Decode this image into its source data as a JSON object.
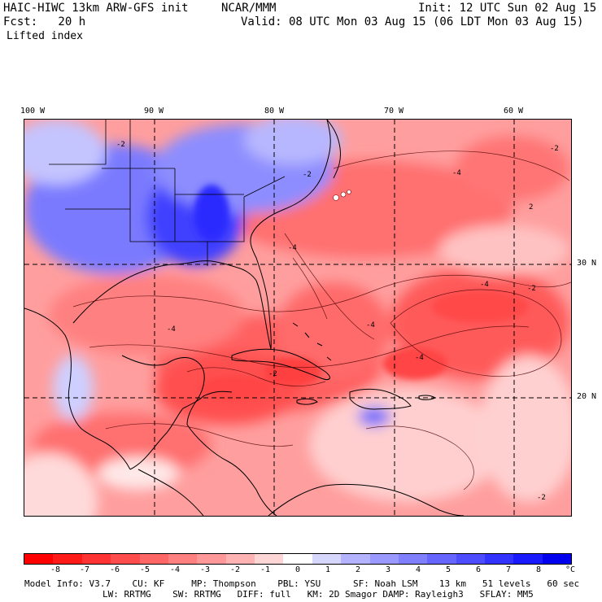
{
  "header": {
    "title_left": "HAIC-HIWC 13km ARW-GFS init",
    "org": "NCAR/MMM",
    "init": "Init: 12 UTC Sun 02 Aug 15",
    "fcst": "Fcst:   20 h",
    "valid": "Valid: 08 UTC Mon 03 Aug 15 (06 LDT Mon 03 Aug 15)",
    "field": "Lifted index"
  },
  "map": {
    "lon_labels": [
      "100 W",
      "90 W",
      "80 W",
      "70 W",
      "60 W"
    ],
    "lat_labels": [
      "30 N",
      "20 N"
    ],
    "contour_labels": [
      "-2",
      "-2",
      "-4",
      "-2",
      "2",
      "-4",
      "-2",
      "-4",
      "-2",
      "-4",
      "-4",
      "-4",
      "-2"
    ],
    "colors": {
      "land_line": "#000000",
      "grid_line": "#000000"
    }
  },
  "colorbar": {
    "ticks": [
      "-8",
      "-7",
      "-6",
      "-5",
      "-4",
      "-3",
      "-2",
      "-1",
      "0",
      "1",
      "2",
      "3",
      "4",
      "5",
      "6",
      "7",
      "8"
    ],
    "unit": "°C",
    "colors": [
      "#ff0000",
      "#ff1a1a",
      "#ff3333",
      "#ff4d4d",
      "#ff6666",
      "#ff8080",
      "#ff9999",
      "#ffb3b3",
      "#ffd6d6",
      "#ffffff",
      "#d6d6ff",
      "#b3b3ff",
      "#9999ff",
      "#8080ff",
      "#6666ff",
      "#4d4dff",
      "#3333ff",
      "#1a1aff",
      "#0000ee"
    ]
  },
  "model_info": {
    "line1": "Model Info: V3.7    CU: KF     MP: Thompson    PBL: YSU      SF: Noah LSM    13 km   51 levels   60 sec",
    "line2": "LW: RRTMG    SW: RRTMG   DIFF: full   KM: 2D Smagor DAMP: Rayleigh3   SFLAY: MM5"
  }
}
